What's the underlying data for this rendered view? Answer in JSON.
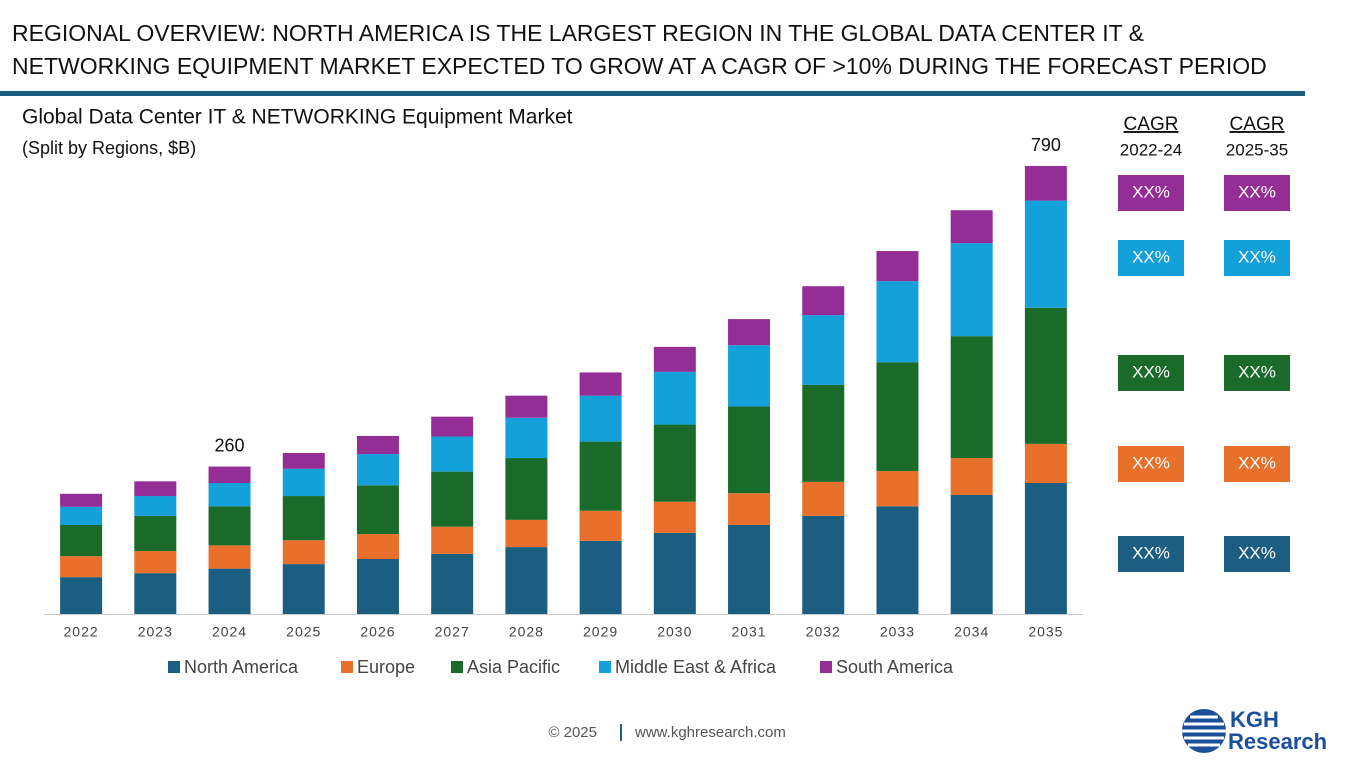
{
  "header": {
    "title_lines": [
      "REGIONAL OVERVIEW: NORTH AMERICA IS THE LARGEST REGION IN THE GLOBAL DATA CENTER IT &",
      "NETWORKING EQUIPMENT MARKET EXPECTED TO GROW AT A CAGR OF >10% DURING THE FORECAST PERIOD"
    ]
  },
  "chart_data": {
    "type": "bar",
    "stacked": true,
    "title": "Global Data Center IT & NETWORKING Equipment Market",
    "subtitle": "(Split by Regions, $B)",
    "categories": [
      "2022",
      "2023",
      "2024",
      "2025",
      "2026",
      "2027",
      "2028",
      "2029",
      "2030",
      "2031",
      "2032",
      "2033",
      "2034",
      "2035"
    ],
    "series": [
      {
        "name": "North America",
        "color": "#1b5e82",
        "values": [
          65,
          72,
          80,
          88,
          97,
          106,
          118,
          129,
          143,
          157,
          173,
          190,
          210,
          231
        ]
      },
      {
        "name": "Europe",
        "color": "#e8702a",
        "values": [
          37,
          39,
          41,
          42,
          44,
          48,
          48,
          53,
          55,
          56,
          60,
          62,
          65,
          69
        ]
      },
      {
        "name": "Asia Pacific",
        "color": "#1a6b2a",
        "values": [
          55,
          62,
          69,
          78,
          86,
          97,
          109,
          122,
          136,
          153,
          171,
          192,
          215,
          240
        ]
      },
      {
        "name": "Middle East & Africa",
        "color": "#14a0d9",
        "values": [
          32,
          35,
          41,
          48,
          55,
          62,
          71,
          81,
          93,
          108,
          123,
          143,
          164,
          189
        ]
      },
      {
        "name": "South America",
        "color": "#952d97",
        "values": [
          23,
          26,
          29,
          28,
          32,
          35,
          39,
          41,
          44,
          46,
          51,
          53,
          58,
          61
        ]
      }
    ],
    "totals": [
      null,
      null,
      260,
      null,
      null,
      null,
      null,
      null,
      null,
      null,
      null,
      null,
      null,
      790
    ],
    "legend": "bottom"
  },
  "cagr": {
    "columns": [
      {
        "title": "CAGR",
        "period": "2022-24"
      },
      {
        "title": "CAGR",
        "period": "2025-35"
      }
    ],
    "rows": [
      {
        "color": "#952d97",
        "cells": [
          "XX%",
          "XX%"
        ]
      },
      {
        "color": "#14a0d9",
        "cells": [
          "XX%",
          "XX%"
        ]
      },
      {
        "color": "#1a6b2a",
        "cells": [
          "XX%",
          "XX%"
        ]
      },
      {
        "color": "#e8702a",
        "cells": [
          "XX%",
          "XX%"
        ]
      },
      {
        "color": "#1b5e82",
        "cells": [
          "XX%",
          "XX%"
        ]
      }
    ]
  },
  "footer": {
    "copyright": "© 2025",
    "website": "www.kghresearch.com"
  },
  "logo": {
    "line1": "KGH",
    "line2": "Research"
  }
}
